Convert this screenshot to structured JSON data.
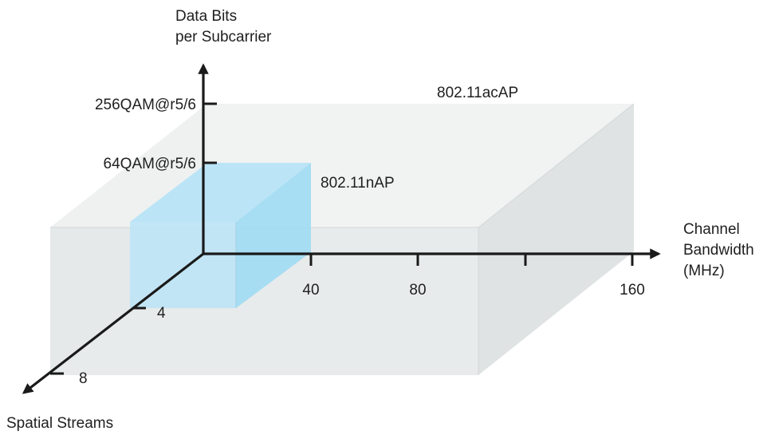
{
  "colors": {
    "ac_box_front": "#e6e9e9",
    "ac_box_top": "#eff0f0",
    "ac_box_side": "#dfe3e3",
    "ac_box_left": "#d7dfdf",
    "n_box_front": "#bfe4f3",
    "n_box_top": "#b6e3f7",
    "n_box_side": "#a4dcf3",
    "axis": "#1a1a1a"
  },
  "axes": {
    "y_title_line1": "Data Bits",
    "y_title_line2": "per Subcarrier",
    "x_title_line1": "Channel",
    "x_title_line2": "Bandwidth",
    "x_title_line3": "(MHz)",
    "z_title": "Spatial Streams"
  },
  "y_ticks": [
    {
      "label": "256QAM@r5/6"
    },
    {
      "label": "64QAM@r5/6"
    }
  ],
  "x_ticks": [
    {
      "label": "40"
    },
    {
      "label": "80"
    },
    {
      "label": ""
    },
    {
      "label": "160"
    }
  ],
  "z_ticks": [
    {
      "label": "4"
    },
    {
      "label": "8"
    }
  ],
  "regions": {
    "ac_label": "802.11acAP",
    "n_label": "802.11nAP"
  }
}
